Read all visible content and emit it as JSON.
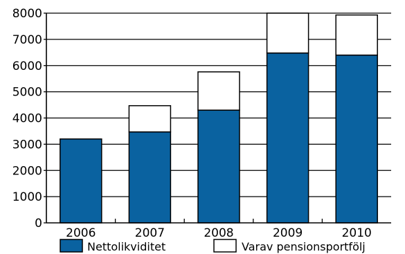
{
  "chart_data": {
    "type": "bar",
    "stacked": true,
    "title": "",
    "xlabel": "",
    "ylabel": "",
    "categories": [
      "2006",
      "2007",
      "2008",
      "2009",
      "2010"
    ],
    "ylim": [
      0,
      8000
    ],
    "yticks": [
      "0",
      "1000",
      "2000",
      "3000",
      "4000",
      "5000",
      "6000",
      "7000",
      "8000"
    ],
    "grid": true,
    "legend_position": "bottom",
    "series": [
      {
        "name": "Nettolikviditet",
        "values": [
          3200,
          3470,
          4300,
          6480,
          6400
        ],
        "color": "#0a62a0"
      },
      {
        "name": "Varav pensionsportfölj",
        "values": [
          0,
          1000,
          1460,
          1520,
          1530
        ],
        "color": "#ffffff"
      }
    ]
  }
}
